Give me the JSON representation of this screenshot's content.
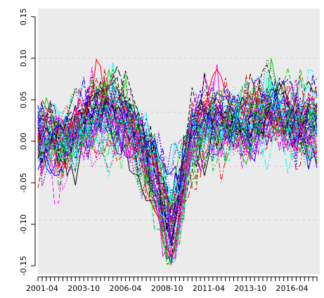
{
  "chart_data": {
    "type": "line",
    "title": "",
    "xlabel": "",
    "ylabel": "",
    "x_range": [
      "2001-01",
      "2017-12"
    ],
    "ylim": [
      -0.16,
      0.16
    ],
    "grid": true,
    "legend": "none",
    "background_color": "#ebebeb",
    "y_ticks": [
      -0.15,
      -0.1,
      -0.05,
      0.0,
      0.05,
      0.1,
      0.15
    ],
    "y_tick_labels": [
      "-0.15",
      "-0.10",
      "-0.05",
      "0.00",
      "0.05",
      "0.10",
      "0.15"
    ],
    "x_ticks": [
      "2001-04",
      "2003-10",
      "2006-04",
      "2008-10",
      "2011-04",
      "2013-10",
      "2016-04"
    ],
    "x_minor_ticks_per_year": 4,
    "series_colors": [
      "#000000",
      "#ff0000",
      "#00cd00",
      "#0000ff",
      "#00ffff",
      "#ff00ff"
    ],
    "series_count": 60,
    "series_pattern": {
      "description_free_anchor_values": [
        {
          "x": "2001-04",
          "y": 0.01
        },
        {
          "x": "2002-06",
          "y": 0.0
        },
        {
          "x": "2003-10",
          "y": 0.02
        },
        {
          "x": "2005-01",
          "y": 0.03
        },
        {
          "x": "2006-04",
          "y": 0.02
        },
        {
          "x": "2007-07",
          "y": -0.02
        },
        {
          "x": "2008-04",
          "y": -0.05
        },
        {
          "x": "2008-10",
          "y": -0.08
        },
        {
          "x": "2009-01",
          "y": -0.1
        },
        {
          "x": "2009-07",
          "y": -0.06
        },
        {
          "x": "2010-04",
          "y": 0.01
        },
        {
          "x": "2011-04",
          "y": 0.02
        },
        {
          "x": "2012-07",
          "y": 0.02
        },
        {
          "x": "2013-10",
          "y": 0.02
        },
        {
          "x": "2015-01",
          "y": 0.03
        },
        {
          "x": "2016-04",
          "y": 0.02
        },
        {
          "x": "2017-10",
          "y": 0.02
        }
      ]
    }
  }
}
